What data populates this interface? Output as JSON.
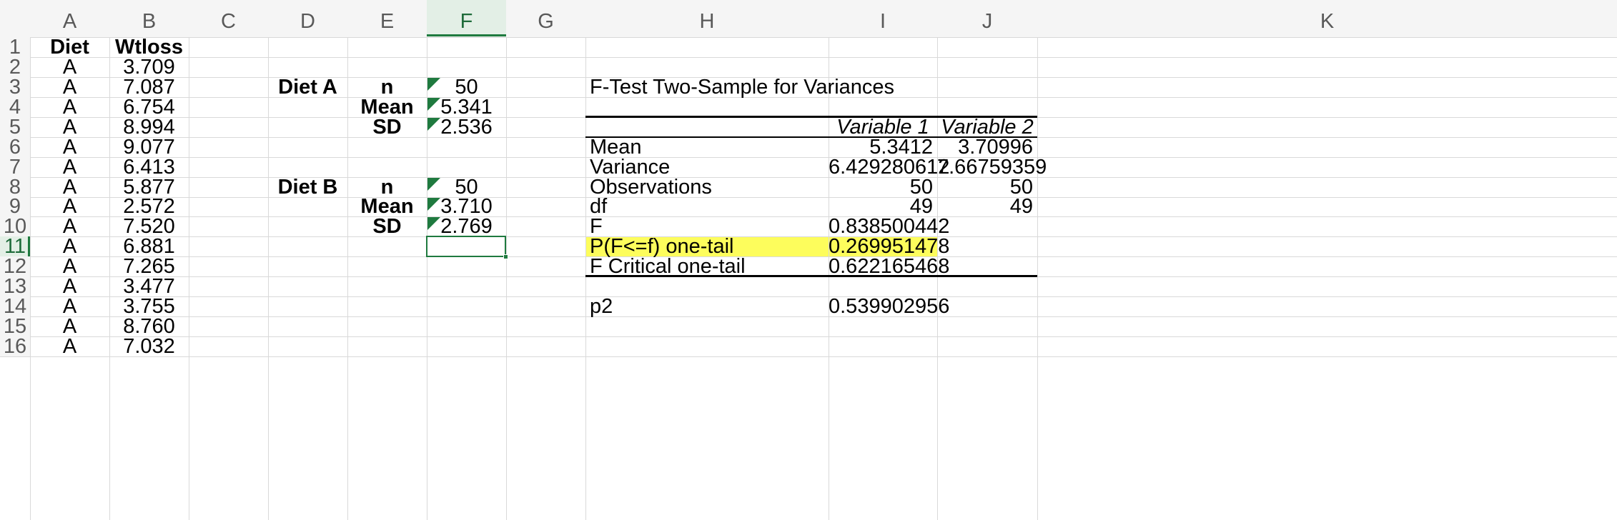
{
  "columns": [
    "A",
    "B",
    "C",
    "D",
    "E",
    "F",
    "G",
    "H",
    "I",
    "J",
    "K"
  ],
  "rows": [
    "1",
    "2",
    "3",
    "4",
    "5",
    "6",
    "7",
    "8",
    "9",
    "10",
    "11",
    "12",
    "13",
    "14",
    "15",
    "16"
  ],
  "selected_column": "F",
  "selected_row": "11",
  "colA": [
    "Diet",
    "A",
    "A",
    "A",
    "A",
    "A",
    "A",
    "A",
    "A",
    "A",
    "A",
    "A",
    "A",
    "A",
    "A",
    "A"
  ],
  "colB": [
    "Wtloss",
    "3.709",
    "7.087",
    "6.754",
    "8.994",
    "9.077",
    "6.413",
    "5.877",
    "2.572",
    "7.520",
    "6.881",
    "7.265",
    "3.477",
    "3.755",
    "8.760",
    "7.032"
  ],
  "summary": {
    "diet_a": {
      "label": "Diet A",
      "n_label": "n",
      "n": "50",
      "mean_label": "Mean",
      "mean": "5.341",
      "sd_label": "SD",
      "sd": "2.536"
    },
    "diet_b": {
      "label": "Diet B",
      "n_label": "n",
      "n": "50",
      "mean_label": "Mean",
      "mean": "3.710",
      "sd_label": "SD",
      "sd": "2.769"
    }
  },
  "ftest": {
    "title": "F-Test Two-Sample for Variances",
    "var1_header": "Variable 1",
    "var2_header": "Variable 2",
    "rows": [
      {
        "label": "Mean",
        "v1": "5.3412",
        "v2": "3.70996"
      },
      {
        "label": "Variance",
        "v1": "6.429280612",
        "v2": "7.66759359"
      },
      {
        "label": "Observations",
        "v1": "50",
        "v2": "50"
      },
      {
        "label": "df",
        "v1": "49",
        "v2": "49"
      },
      {
        "label": "F",
        "v1": "0.838500442",
        "v2": ""
      },
      {
        "label": "P(F<=f) one-tail",
        "v1": "0.269951478",
        "v2": ""
      },
      {
        "label": "F Critical one-tail",
        "v1": "0.622165468",
        "v2": ""
      }
    ],
    "p2_label": "p2",
    "p2_value": "0.539902956"
  },
  "colors": {
    "highlight": "#fdfd5c",
    "selection": "#1f7a3f",
    "grid": "#d9d9d9",
    "header_bg": "#f5f5f5"
  }
}
